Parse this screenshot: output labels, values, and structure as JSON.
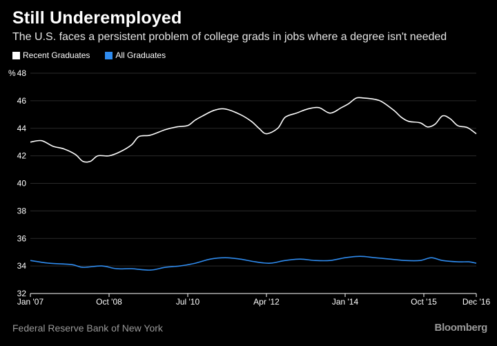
{
  "colors": {
    "background": "#000000",
    "recent": "#ffffff",
    "all": "#2f8cf0",
    "grid": "#2b2b2b",
    "axis": "#ffffff",
    "muted": "#9a9a9a"
  },
  "header": {
    "title": "Still Underemployed",
    "subtitle": "The U.S. faces a persistent problem of college grads in jobs where a degree isn't needed"
  },
  "footer": {
    "source": "Federal Reserve Bank of New York",
    "logo": "Bloomberg"
  },
  "chart_data": {
    "type": "line",
    "title": "Still Underemployed",
    "subtitle": "The U.S. faces a persistent problem of college grads in jobs where a degree isn't needed",
    "ylabel": "%",
    "ylim": [
      32,
      48
    ],
    "yticks": [
      32,
      34,
      36,
      38,
      40,
      42,
      44,
      46,
      48
    ],
    "xlim": [
      "2007-01",
      "2016-12"
    ],
    "xticks": [
      "Jan '07",
      "Oct '08",
      "Jul '10",
      "Apr '12",
      "Jan '14",
      "Oct '15",
      "Dec '16"
    ],
    "xtick_dates": [
      "2007-01",
      "2008-10",
      "2010-07",
      "2012-04",
      "2014-01",
      "2015-10",
      "2016-12"
    ],
    "grid": true,
    "legend_position": "top-left",
    "series": [
      {
        "name": "Recent Graduates",
        "color": "#ffffff",
        "points": [
          [
            "2007-01",
            43.0
          ],
          [
            "2007-04",
            43.1
          ],
          [
            "2007-07",
            42.7
          ],
          [
            "2007-10",
            42.5
          ],
          [
            "2008-01",
            42.1
          ],
          [
            "2008-03",
            41.6
          ],
          [
            "2008-05",
            41.6
          ],
          [
            "2008-07",
            42.0
          ],
          [
            "2008-10",
            42.0
          ],
          [
            "2009-01",
            42.3
          ],
          [
            "2009-04",
            42.8
          ],
          [
            "2009-06",
            43.4
          ],
          [
            "2009-09",
            43.5
          ],
          [
            "2010-01",
            43.9
          ],
          [
            "2010-04",
            44.1
          ],
          [
            "2010-07",
            44.2
          ],
          [
            "2010-09",
            44.6
          ],
          [
            "2010-11",
            44.9
          ],
          [
            "2011-02",
            45.3
          ],
          [
            "2011-05",
            45.4
          ],
          [
            "2011-09",
            45.0
          ],
          [
            "2011-12",
            44.5
          ],
          [
            "2012-02",
            44.0
          ],
          [
            "2012-04",
            43.6
          ],
          [
            "2012-07",
            44.0
          ],
          [
            "2012-09",
            44.8
          ],
          [
            "2012-12",
            45.1
          ],
          [
            "2013-03",
            45.4
          ],
          [
            "2013-06",
            45.5
          ],
          [
            "2013-09",
            45.1
          ],
          [
            "2013-12",
            45.5
          ],
          [
            "2014-02",
            45.8
          ],
          [
            "2014-04",
            46.2
          ],
          [
            "2014-06",
            46.2
          ],
          [
            "2014-09",
            46.1
          ],
          [
            "2014-11",
            45.9
          ],
          [
            "2015-02",
            45.3
          ],
          [
            "2015-04",
            44.8
          ],
          [
            "2015-06",
            44.5
          ],
          [
            "2015-09",
            44.4
          ],
          [
            "2015-11",
            44.1
          ],
          [
            "2016-01",
            44.3
          ],
          [
            "2016-03",
            44.9
          ],
          [
            "2016-05",
            44.7
          ],
          [
            "2016-07",
            44.2
          ],
          [
            "2016-09",
            44.1
          ],
          [
            "2016-10",
            44.0
          ],
          [
            "2016-12",
            43.6
          ]
        ]
      },
      {
        "name": "All Graduates",
        "color": "#2f8cf0",
        "points": [
          [
            "2007-01",
            34.4
          ],
          [
            "2007-06",
            34.2
          ],
          [
            "2007-12",
            34.1
          ],
          [
            "2008-03",
            33.9
          ],
          [
            "2008-08",
            34.0
          ],
          [
            "2008-12",
            33.8
          ],
          [
            "2009-04",
            33.8
          ],
          [
            "2009-09",
            33.7
          ],
          [
            "2010-01",
            33.9
          ],
          [
            "2010-05",
            34.0
          ],
          [
            "2010-09",
            34.2
          ],
          [
            "2011-01",
            34.5
          ],
          [
            "2011-05",
            34.6
          ],
          [
            "2011-09",
            34.5
          ],
          [
            "2012-01",
            34.3
          ],
          [
            "2012-05",
            34.2
          ],
          [
            "2012-09",
            34.4
          ],
          [
            "2013-01",
            34.5
          ],
          [
            "2013-05",
            34.4
          ],
          [
            "2013-09",
            34.4
          ],
          [
            "2014-01",
            34.6
          ],
          [
            "2014-05",
            34.7
          ],
          [
            "2014-09",
            34.6
          ],
          [
            "2015-01",
            34.5
          ],
          [
            "2015-05",
            34.4
          ],
          [
            "2015-09",
            34.4
          ],
          [
            "2015-12",
            34.6
          ],
          [
            "2016-03",
            34.4
          ],
          [
            "2016-07",
            34.3
          ],
          [
            "2016-10",
            34.3
          ],
          [
            "2016-12",
            34.2
          ]
        ]
      }
    ]
  }
}
